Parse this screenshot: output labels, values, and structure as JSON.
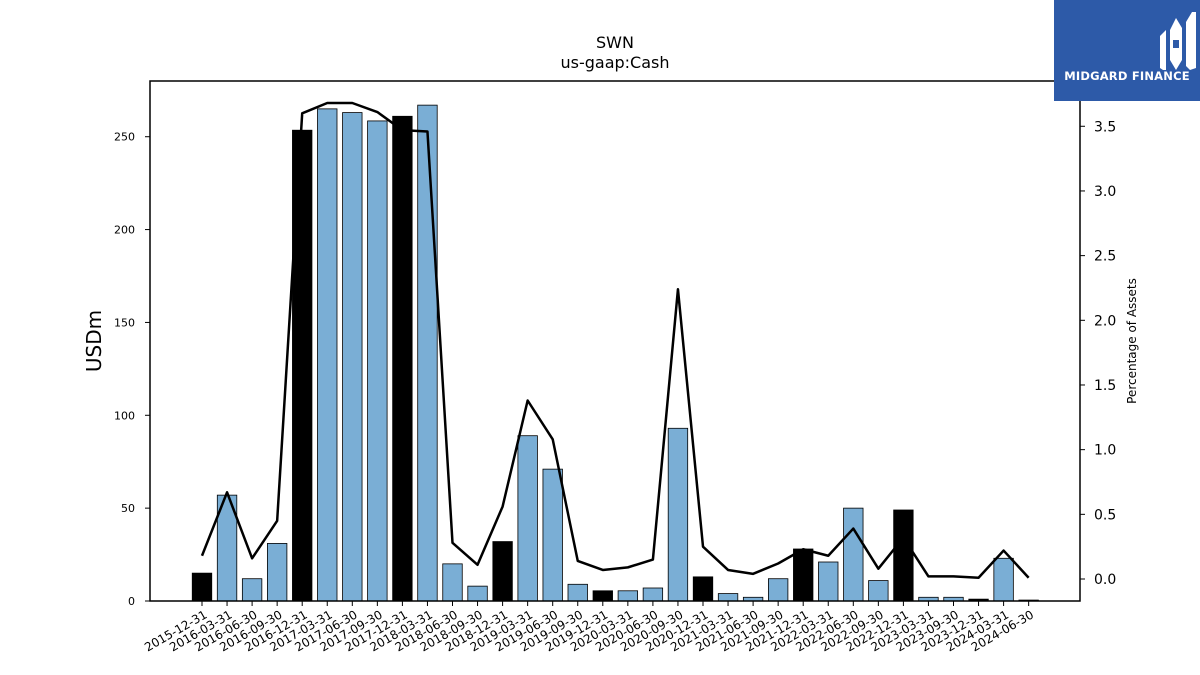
{
  "chart_data": {
    "type": "bar",
    "title": "SWN",
    "subtitle": "us-gaap:Cash",
    "ylabel": "USDm",
    "y2label": "Percentage of Assets",
    "ylim": [
      0,
      280
    ],
    "y2lim": [
      -0.17,
      3.85
    ],
    "yticks": [
      0,
      50,
      100,
      150,
      200,
      250
    ],
    "y2ticks": [
      0.0,
      0.5,
      1.0,
      1.5,
      2.0,
      2.5,
      3.0,
      3.5
    ],
    "categories": [
      "2015-12-31",
      "2016-03-31",
      "2016-06-30",
      "2016-09-30",
      "2016-12-31",
      "2017-03-31",
      "2017-06-30",
      "2017-09-30",
      "2017-12-31",
      "2018-03-31",
      "2018-06-30",
      "2018-09-30",
      "2018-12-31",
      "2019-03-31",
      "2019-06-30",
      "2019-09-30",
      "2019-12-31",
      "2020-03-31",
      "2020-06-30",
      "2020-09-30",
      "2020-12-31",
      "2021-03-31",
      "2021-06-30",
      "2021-09-30",
      "2021-12-31",
      "2022-03-31",
      "2022-06-30",
      "2022-09-30",
      "2022-12-31",
      "2023-03-31",
      "2023-09-30",
      "2023-12-31",
      "2024-03-31",
      "2024-06-30"
    ],
    "values": [
      15,
      57,
      12,
      31,
      253.5,
      265,
      263,
      258.5,
      261,
      267,
      20,
      8,
      32,
      89,
      71,
      9,
      5.5,
      5.5,
      7,
      93,
      13,
      4,
      2,
      12,
      28,
      21,
      50,
      11,
      49,
      2,
      2,
      1,
      23,
      0.5
    ],
    "year_end": [
      true,
      false,
      false,
      false,
      true,
      false,
      false,
      false,
      true,
      false,
      false,
      false,
      true,
      false,
      false,
      false,
      true,
      false,
      false,
      false,
      true,
      false,
      false,
      false,
      true,
      false,
      false,
      false,
      true,
      false,
      false,
      true,
      false,
      false
    ],
    "pct_of_assets": [
      0.18,
      0.67,
      0.16,
      0.45,
      3.6,
      3.68,
      3.68,
      3.61,
      3.47,
      3.46,
      0.28,
      0.11,
      0.56,
      1.38,
      1.08,
      0.14,
      0.07,
      0.09,
      0.15,
      2.24,
      0.25,
      0.07,
      0.04,
      0.12,
      0.23,
      0.18,
      0.39,
      0.08,
      0.32,
      0.02,
      0.02,
      0.01,
      0.22,
      0.01
    ],
    "colors": {
      "quarter": "#7aaed5",
      "year_end": "#000000",
      "line": "#000000"
    },
    "grid": false
  },
  "logo": {
    "text": "MIDGARD FINANCE"
  }
}
